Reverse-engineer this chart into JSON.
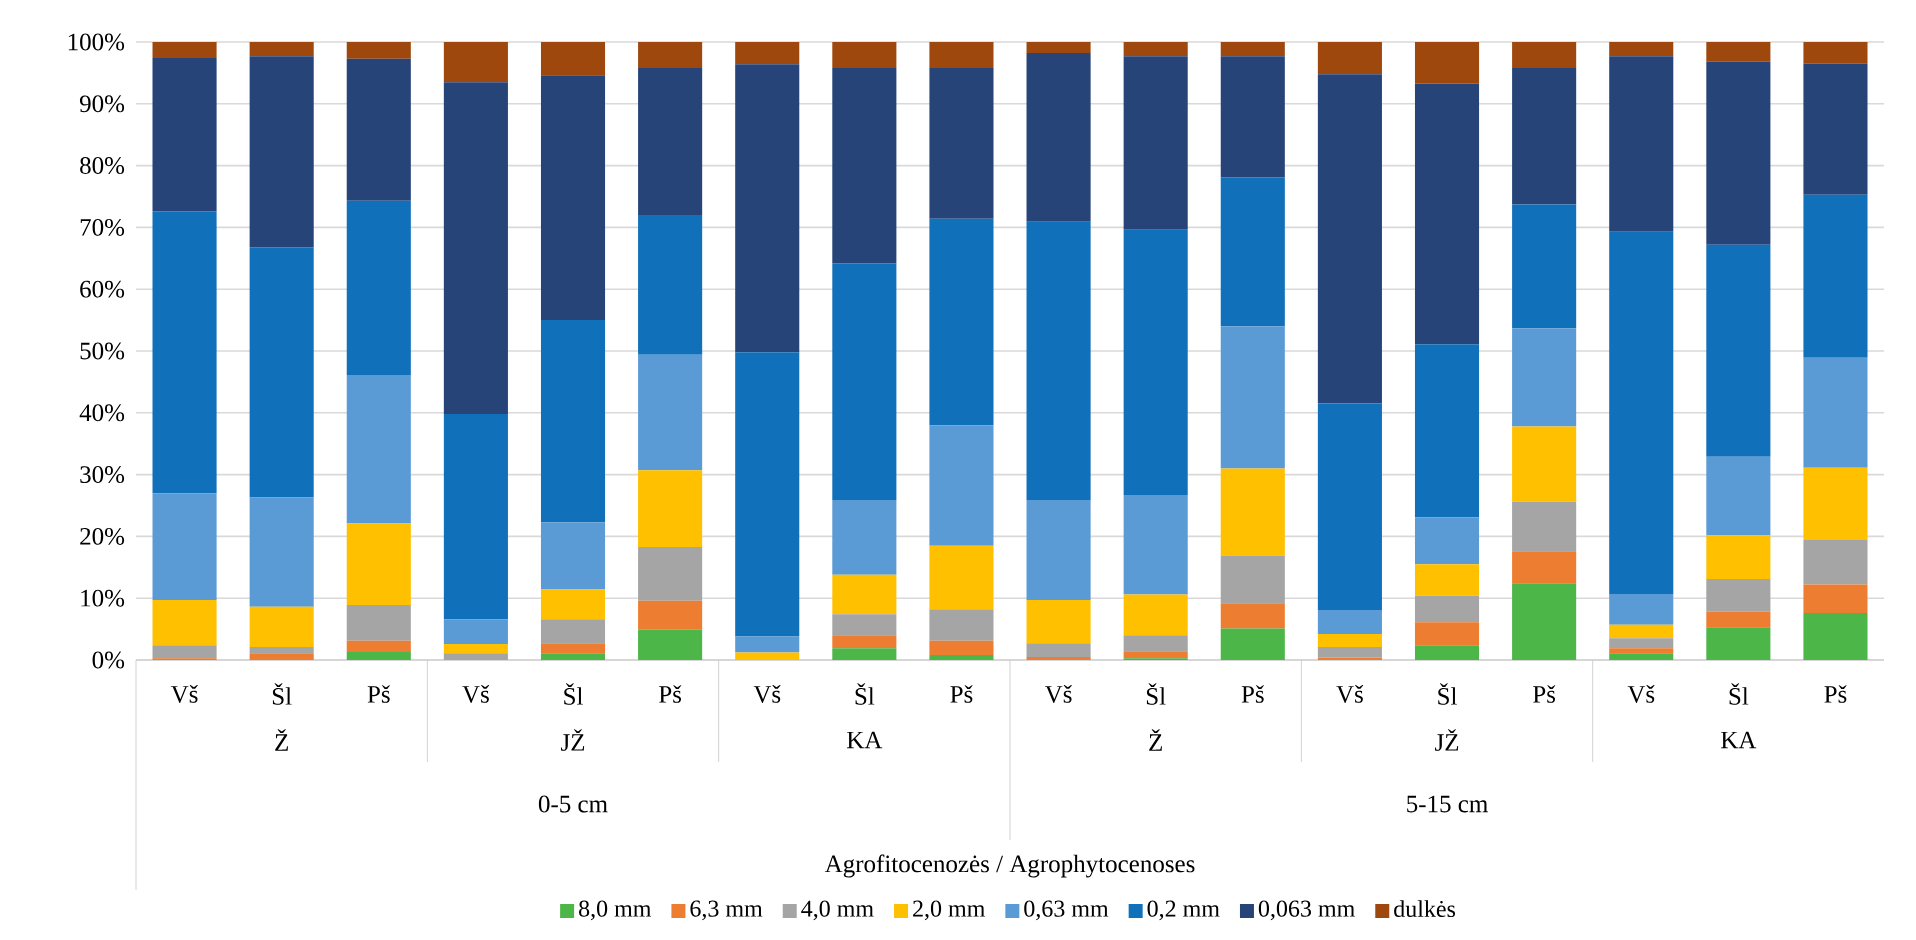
{
  "chart_data": {
    "type": "bar",
    "stacked": true,
    "categories": [
      "Vš",
      "Šl",
      "Pš",
      "Vš",
      "Šl",
      "Pš",
      "Vš",
      "Šl",
      "Pš",
      "Vš",
      "Šl",
      "Pš",
      "Vš",
      "Šl",
      "Pš",
      "Vš",
      "Šl",
      "Pš"
    ],
    "annotations": [
      "Ž",
      "JŽ",
      "KA",
      "Ž",
      "JŽ",
      "KA",
      "0-5 cm",
      "5-15 cm",
      "Agrofitocenozės / Agrophytocenoses"
    ],
    "series": [
      {
        "name": "8,0 mm",
        "color": "#4cb648",
        "values": [
          0,
          0,
          1.3,
          0,
          1.1,
          4.9,
          0,
          1.9,
          0.8,
          0,
          0.3,
          5.1,
          0,
          2.4,
          12.4,
          1.1,
          5.3,
          7.6
        ]
      },
      {
        "name": "6,3 mm",
        "color": "#ed7d31",
        "values": [
          0.3,
          1.1,
          1.8,
          0,
          1.6,
          4.7,
          0,
          2.1,
          2.3,
          0.5,
          1.1,
          4.1,
          0.4,
          3.7,
          5.2,
          0.8,
          2.5,
          4.6
        ]
      },
      {
        "name": "4,0 mm",
        "color": "#a5a5a5",
        "values": [
          2.1,
          1.0,
          5.8,
          1.1,
          3.9,
          8.7,
          null,
          3.4,
          5.1,
          2.2,
          2.6,
          7.7,
          1.7,
          4.3,
          8.0,
          1.6,
          5.3,
          7.2
        ]
      },
      {
        "name": "2,0 mm",
        "color": "#ffc000",
        "values": [
          7.3,
          6.5,
          13.2,
          1.5,
          4.8,
          12.4,
          1.2,
          6.4,
          10.3,
          7.0,
          6.6,
          14.1,
          2.1,
          5.1,
          12.2,
          2.2,
          7.1,
          11.7
        ]
      },
      {
        "name": "0,63 mm",
        "color": "#5b9bd5",
        "values": [
          17.3,
          17.7,
          24.0,
          4.0,
          10.9,
          18.7,
          2.6,
          12.1,
          19.5,
          16.2,
          16.1,
          23.0,
          3.9,
          7.6,
          15.9,
          5.0,
          12.7,
          17.8
        ]
      },
      {
        "name": "0,2 mm",
        "color": "#1170ba",
        "values": [
          45.6,
          40.5,
          28.2,
          33.2,
          32.7,
          22.6,
          46.0,
          38.3,
          33.4,
          45.0,
          42.9,
          24.1,
          33.4,
          28.0,
          20.0,
          58.6,
          34.3,
          26.4
        ]
      },
      {
        "name": "0,063 mm",
        "color": "#264478",
        "values": [
          24.8,
          30.9,
          23.0,
          53.7,
          39.6,
          23.8,
          46.6,
          31.6,
          24.4,
          27.3,
          28.1,
          19.6,
          53.3,
          42.2,
          22.1,
          28.4,
          29.6,
          21.2
        ]
      },
      {
        "name": "dulkės",
        "color": "#9e480e",
        "values": [
          2.6,
          2.3,
          2.7,
          6.5,
          5.4,
          4.2,
          3.6,
          4.2,
          4.2,
          1.8,
          2.3,
          2.3,
          5.2,
          6.7,
          4.2,
          2.3,
          3.2,
          3.5
        ]
      }
    ],
    "ylim": [
      0,
      100
    ],
    "yticks": [
      {
        "value": 0,
        "label": "0%"
      },
      {
        "value": 10,
        "label": "10%"
      },
      {
        "value": 20,
        "label": "20%"
      },
      {
        "value": 30,
        "label": "30%"
      },
      {
        "value": 40,
        "label": "40%"
      },
      {
        "value": 50,
        "label": "50%"
      },
      {
        "value": 60,
        "label": "60%"
      },
      {
        "value": 70,
        "label": "70%"
      },
      {
        "value": 80,
        "label": "80%"
      },
      {
        "value": 90,
        "label": "90%"
      },
      {
        "value": 100,
        "label": "100%"
      }
    ],
    "grid": "y",
    "legend": "bottom"
  }
}
